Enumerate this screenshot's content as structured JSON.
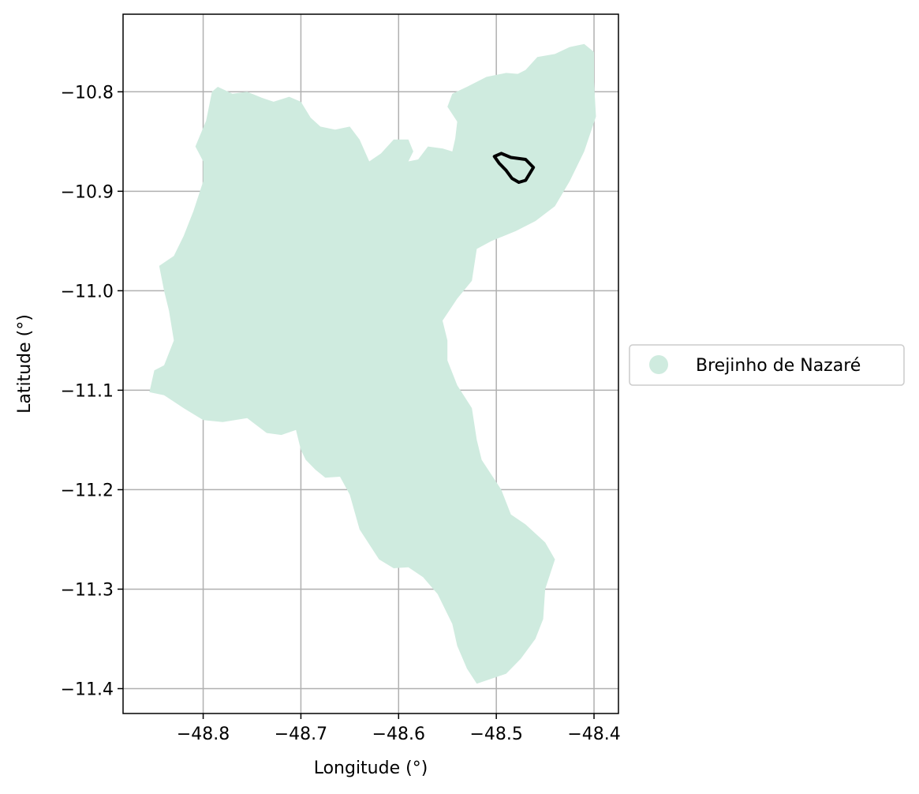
{
  "chart_data": {
    "type": "map",
    "xlabel": "Longitude (°)",
    "ylabel": "Latitude (°)",
    "xlim": [
      -48.882,
      -48.375
    ],
    "ylim": [
      -11.425,
      -10.722
    ],
    "grid": true,
    "legend_placement": "center-right-outside",
    "x_ticks": [
      {
        "value": -48.8,
        "label": "−48.8"
      },
      {
        "value": -48.7,
        "label": "−48.7"
      },
      {
        "value": -48.6,
        "label": "−48.6"
      },
      {
        "value": -48.5,
        "label": "−48.5"
      },
      {
        "value": -48.4,
        "label": "−48.4"
      }
    ],
    "y_ticks": [
      {
        "value": -10.8,
        "label": "−10.8"
      },
      {
        "value": -10.9,
        "label": "−10.9"
      },
      {
        "value": -11.0,
        "label": "−11.0"
      },
      {
        "value": -11.1,
        "label": "−11.1"
      },
      {
        "value": -11.2,
        "label": "−11.2"
      },
      {
        "value": -11.3,
        "label": "−11.3"
      },
      {
        "value": -11.4,
        "label": "−11.4"
      }
    ],
    "legend": [
      {
        "label": "Brejinho de Nazaré",
        "color": "#cfebdf"
      }
    ],
    "region": {
      "name": "Brejinho de Nazaré",
      "fill_color": "#cfebdf",
      "boundary": [
        [
          -48.808,
          -10.855
        ],
        [
          -48.797,
          -10.829
        ],
        [
          -48.791,
          -10.8
        ],
        [
          -48.785,
          -10.795
        ],
        [
          -48.77,
          -10.802
        ],
        [
          -48.755,
          -10.8
        ],
        [
          -48.74,
          -10.806
        ],
        [
          -48.728,
          -10.81
        ],
        [
          -48.712,
          -10.805
        ],
        [
          -48.7,
          -10.81
        ],
        [
          -48.69,
          -10.826
        ],
        [
          -48.68,
          -10.835
        ],
        [
          -48.665,
          -10.838
        ],
        [
          -48.65,
          -10.835
        ],
        [
          -48.64,
          -10.848
        ],
        [
          -48.63,
          -10.87
        ],
        [
          -48.618,
          -10.862
        ],
        [
          -48.605,
          -10.848
        ],
        [
          -48.59,
          -10.848
        ],
        [
          -48.585,
          -10.86
        ],
        [
          -48.59,
          -10.87
        ],
        [
          -48.58,
          -10.868
        ],
        [
          -48.57,
          -10.855
        ],
        [
          -48.555,
          -10.857
        ],
        [
          -48.545,
          -10.86
        ],
        [
          -48.542,
          -10.847
        ],
        [
          -48.54,
          -10.83
        ],
        [
          -48.55,
          -10.815
        ],
        [
          -48.545,
          -10.802
        ],
        [
          -48.53,
          -10.795
        ],
        [
          -48.51,
          -10.785
        ],
        [
          -48.49,
          -10.781
        ],
        [
          -48.478,
          -10.782
        ],
        [
          -48.47,
          -10.778
        ],
        [
          -48.458,
          -10.765
        ],
        [
          -48.44,
          -10.762
        ],
        [
          -48.425,
          -10.755
        ],
        [
          -48.41,
          -10.752
        ],
        [
          -48.4,
          -10.76
        ],
        [
          -48.4,
          -10.79
        ],
        [
          -48.398,
          -10.825
        ],
        [
          -48.41,
          -10.86
        ],
        [
          -48.425,
          -10.89
        ],
        [
          -48.44,
          -10.915
        ],
        [
          -48.46,
          -10.93
        ],
        [
          -48.48,
          -10.94
        ],
        [
          -48.505,
          -10.95
        ],
        [
          -48.52,
          -10.958
        ],
        [
          -48.525,
          -10.99
        ],
        [
          -48.54,
          -11.008
        ],
        [
          -48.555,
          -11.03
        ],
        [
          -48.55,
          -11.05
        ],
        [
          -48.55,
          -11.07
        ],
        [
          -48.54,
          -11.095
        ],
        [
          -48.525,
          -11.118
        ],
        [
          -48.52,
          -11.15
        ],
        [
          -48.515,
          -11.17
        ],
        [
          -48.495,
          -11.2
        ],
        [
          -48.485,
          -11.225
        ],
        [
          -48.47,
          -11.235
        ],
        [
          -48.45,
          -11.253
        ],
        [
          -48.44,
          -11.27
        ],
        [
          -48.45,
          -11.3
        ],
        [
          -48.452,
          -11.33
        ],
        [
          -48.46,
          -11.35
        ],
        [
          -48.475,
          -11.37
        ],
        [
          -48.49,
          -11.385
        ],
        [
          -48.52,
          -11.395
        ],
        [
          -48.53,
          -11.38
        ],
        [
          -48.54,
          -11.357
        ],
        [
          -48.545,
          -11.335
        ],
        [
          -48.56,
          -11.305
        ],
        [
          -48.575,
          -11.288
        ],
        [
          -48.59,
          -11.278
        ],
        [
          -48.605,
          -11.279
        ],
        [
          -48.62,
          -11.27
        ],
        [
          -48.64,
          -11.24
        ],
        [
          -48.65,
          -11.205
        ],
        [
          -48.66,
          -11.187
        ],
        [
          -48.675,
          -11.188
        ],
        [
          -48.685,
          -11.18
        ],
        [
          -48.695,
          -11.17
        ],
        [
          -48.7,
          -11.16
        ],
        [
          -48.705,
          -11.14
        ],
        [
          -48.72,
          -11.145
        ],
        [
          -48.735,
          -11.143
        ],
        [
          -48.755,
          -11.128
        ],
        [
          -48.78,
          -11.132
        ],
        [
          -48.8,
          -11.13
        ],
        [
          -48.82,
          -11.118
        ],
        [
          -48.84,
          -11.105
        ],
        [
          -48.855,
          -11.102
        ],
        [
          -48.85,
          -11.08
        ],
        [
          -48.84,
          -11.075
        ],
        [
          -48.83,
          -11.05
        ],
        [
          -48.835,
          -11.02
        ],
        [
          -48.84,
          -11.0
        ],
        [
          -48.845,
          -10.975
        ],
        [
          -48.83,
          -10.965
        ],
        [
          -48.82,
          -10.945
        ],
        [
          -48.81,
          -10.92
        ],
        [
          -48.8,
          -10.89
        ],
        [
          -48.8,
          -10.87
        ],
        [
          -48.808,
          -10.855
        ]
      ]
    },
    "outline": {
      "stroke_color": "#000000",
      "boundary": [
        [
          -48.502,
          -10.865
        ],
        [
          -48.495,
          -10.862
        ],
        [
          -48.485,
          -10.866
        ],
        [
          -48.47,
          -10.868
        ],
        [
          -48.462,
          -10.876
        ],
        [
          -48.47,
          -10.889
        ],
        [
          -48.477,
          -10.891
        ],
        [
          -48.484,
          -10.887
        ],
        [
          -48.49,
          -10.879
        ],
        [
          -48.497,
          -10.872
        ],
        [
          -48.502,
          -10.865
        ]
      ]
    }
  }
}
